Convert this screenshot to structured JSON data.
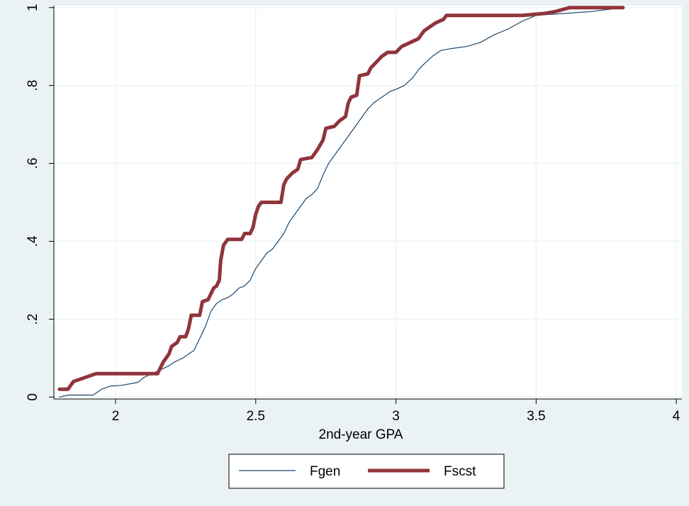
{
  "chart_data": {
    "type": "line",
    "title": "",
    "xlabel": "2nd-year GPA",
    "ylabel": "",
    "xlim": [
      1.78,
      4.02
    ],
    "ylim": [
      -0.005,
      1.005
    ],
    "x_ticks": [
      {
        "value": 2,
        "label": "2"
      },
      {
        "value": 2.5,
        "label": "2.5"
      },
      {
        "value": 3,
        "label": "3"
      },
      {
        "value": 3.5,
        "label": "3.5"
      },
      {
        "value": 4,
        "label": "4"
      }
    ],
    "y_ticks": [
      {
        "value": 0,
        "label": "0"
      },
      {
        "value": 0.2,
        "label": ".2"
      },
      {
        "value": 0.4,
        "label": ".4"
      },
      {
        "value": 0.6,
        "label": ".6"
      },
      {
        "value": 0.8,
        "label": ".8"
      },
      {
        "value": 1,
        "label": "1"
      }
    ],
    "grid": "horizontal and vertical at ticks",
    "legend_position": "bottom",
    "colors": {
      "outer_background": "#EAF2F3",
      "plot_background": "#FFFFFF",
      "grid": "#EAF2F3",
      "Fgen": "#1A476F",
      "Fscst": "#90353B"
    },
    "series": [
      {
        "name": "Fgen",
        "color": "#1A476F",
        "style": "thin",
        "points": [
          [
            1.8,
            0.0
          ],
          [
            1.83,
            0.005
          ],
          [
            1.86,
            0.005
          ],
          [
            1.89,
            0.005
          ],
          [
            1.92,
            0.005
          ],
          [
            1.95,
            0.02
          ],
          [
            1.98,
            0.028
          ],
          [
            2.02,
            0.03
          ],
          [
            2.06,
            0.035
          ],
          [
            2.08,
            0.038
          ],
          [
            2.1,
            0.05
          ],
          [
            2.13,
            0.06
          ],
          [
            2.16,
            0.07
          ],
          [
            2.19,
            0.08
          ],
          [
            2.21,
            0.09
          ],
          [
            2.24,
            0.1
          ],
          [
            2.26,
            0.11
          ],
          [
            2.28,
            0.12
          ],
          [
            2.3,
            0.15
          ],
          [
            2.32,
            0.18
          ],
          [
            2.34,
            0.22
          ],
          [
            2.36,
            0.24
          ],
          [
            2.38,
            0.25
          ],
          [
            2.4,
            0.255
          ],
          [
            2.42,
            0.265
          ],
          [
            2.44,
            0.28
          ],
          [
            2.46,
            0.285
          ],
          [
            2.48,
            0.3
          ],
          [
            2.5,
            0.33
          ],
          [
            2.52,
            0.35
          ],
          [
            2.54,
            0.37
          ],
          [
            2.56,
            0.38
          ],
          [
            2.58,
            0.4
          ],
          [
            2.6,
            0.42
          ],
          [
            2.62,
            0.45
          ],
          [
            2.64,
            0.47
          ],
          [
            2.66,
            0.49
          ],
          [
            2.68,
            0.51
          ],
          [
            2.7,
            0.52
          ],
          [
            2.72,
            0.535
          ],
          [
            2.74,
            0.57
          ],
          [
            2.76,
            0.6
          ],
          [
            2.78,
            0.62
          ],
          [
            2.8,
            0.64
          ],
          [
            2.82,
            0.66
          ],
          [
            2.84,
            0.68
          ],
          [
            2.86,
            0.7
          ],
          [
            2.88,
            0.72
          ],
          [
            2.9,
            0.74
          ],
          [
            2.92,
            0.755
          ],
          [
            2.95,
            0.77
          ],
          [
            2.98,
            0.785
          ],
          [
            3.0,
            0.79
          ],
          [
            3.03,
            0.8
          ],
          [
            3.06,
            0.82
          ],
          [
            3.08,
            0.84
          ],
          [
            3.1,
            0.855
          ],
          [
            3.13,
            0.875
          ],
          [
            3.16,
            0.89
          ],
          [
            3.2,
            0.895
          ],
          [
            3.25,
            0.9
          ],
          [
            3.3,
            0.91
          ],
          [
            3.35,
            0.93
          ],
          [
            3.4,
            0.945
          ],
          [
            3.45,
            0.965
          ],
          [
            3.5,
            0.98
          ],
          [
            3.6,
            0.985
          ],
          [
            3.7,
            0.99
          ],
          [
            3.81,
            1.0
          ]
        ]
      },
      {
        "name": "Fscst",
        "color": "#90353B",
        "style": "thick",
        "points": [
          [
            1.8,
            0.02
          ],
          [
            1.83,
            0.02
          ],
          [
            1.85,
            0.04
          ],
          [
            1.89,
            0.05
          ],
          [
            1.93,
            0.06
          ],
          [
            2.0,
            0.06
          ],
          [
            2.08,
            0.06
          ],
          [
            2.15,
            0.06
          ],
          [
            2.17,
            0.09
          ],
          [
            2.19,
            0.11
          ],
          [
            2.2,
            0.13
          ],
          [
            2.22,
            0.14
          ],
          [
            2.23,
            0.155
          ],
          [
            2.25,
            0.155
          ],
          [
            2.26,
            0.175
          ],
          [
            2.27,
            0.21
          ],
          [
            2.3,
            0.21
          ],
          [
            2.31,
            0.245
          ],
          [
            2.33,
            0.25
          ],
          [
            2.34,
            0.265
          ],
          [
            2.35,
            0.28
          ],
          [
            2.36,
            0.285
          ],
          [
            2.37,
            0.3
          ],
          [
            2.375,
            0.35
          ],
          [
            2.38,
            0.37
          ],
          [
            2.385,
            0.39
          ],
          [
            2.395,
            0.4
          ],
          [
            2.4,
            0.405
          ],
          [
            2.45,
            0.405
          ],
          [
            2.46,
            0.42
          ],
          [
            2.48,
            0.42
          ],
          [
            2.49,
            0.435
          ],
          [
            2.5,
            0.47
          ],
          [
            2.51,
            0.49
          ],
          [
            2.52,
            0.5
          ],
          [
            2.59,
            0.5
          ],
          [
            2.6,
            0.545
          ],
          [
            2.61,
            0.56
          ],
          [
            2.63,
            0.575
          ],
          [
            2.65,
            0.585
          ],
          [
            2.66,
            0.61
          ],
          [
            2.7,
            0.615
          ],
          [
            2.72,
            0.635
          ],
          [
            2.74,
            0.66
          ],
          [
            2.75,
            0.69
          ],
          [
            2.78,
            0.695
          ],
          [
            2.8,
            0.71
          ],
          [
            2.82,
            0.72
          ],
          [
            2.83,
            0.755
          ],
          [
            2.84,
            0.77
          ],
          [
            2.86,
            0.775
          ],
          [
            2.87,
            0.825
          ],
          [
            2.9,
            0.83
          ],
          [
            2.91,
            0.845
          ],
          [
            2.93,
            0.86
          ],
          [
            2.95,
            0.875
          ],
          [
            2.97,
            0.885
          ],
          [
            3.0,
            0.885
          ],
          [
            3.02,
            0.9
          ],
          [
            3.05,
            0.91
          ],
          [
            3.08,
            0.92
          ],
          [
            3.1,
            0.94
          ],
          [
            3.12,
            0.95
          ],
          [
            3.14,
            0.96
          ],
          [
            3.17,
            0.97
          ],
          [
            3.18,
            0.98
          ],
          [
            3.3,
            0.98
          ],
          [
            3.45,
            0.98
          ],
          [
            3.53,
            0.985
          ],
          [
            3.57,
            0.99
          ],
          [
            3.62,
            1.0
          ],
          [
            3.81,
            1.0
          ]
        ]
      }
    ]
  }
}
